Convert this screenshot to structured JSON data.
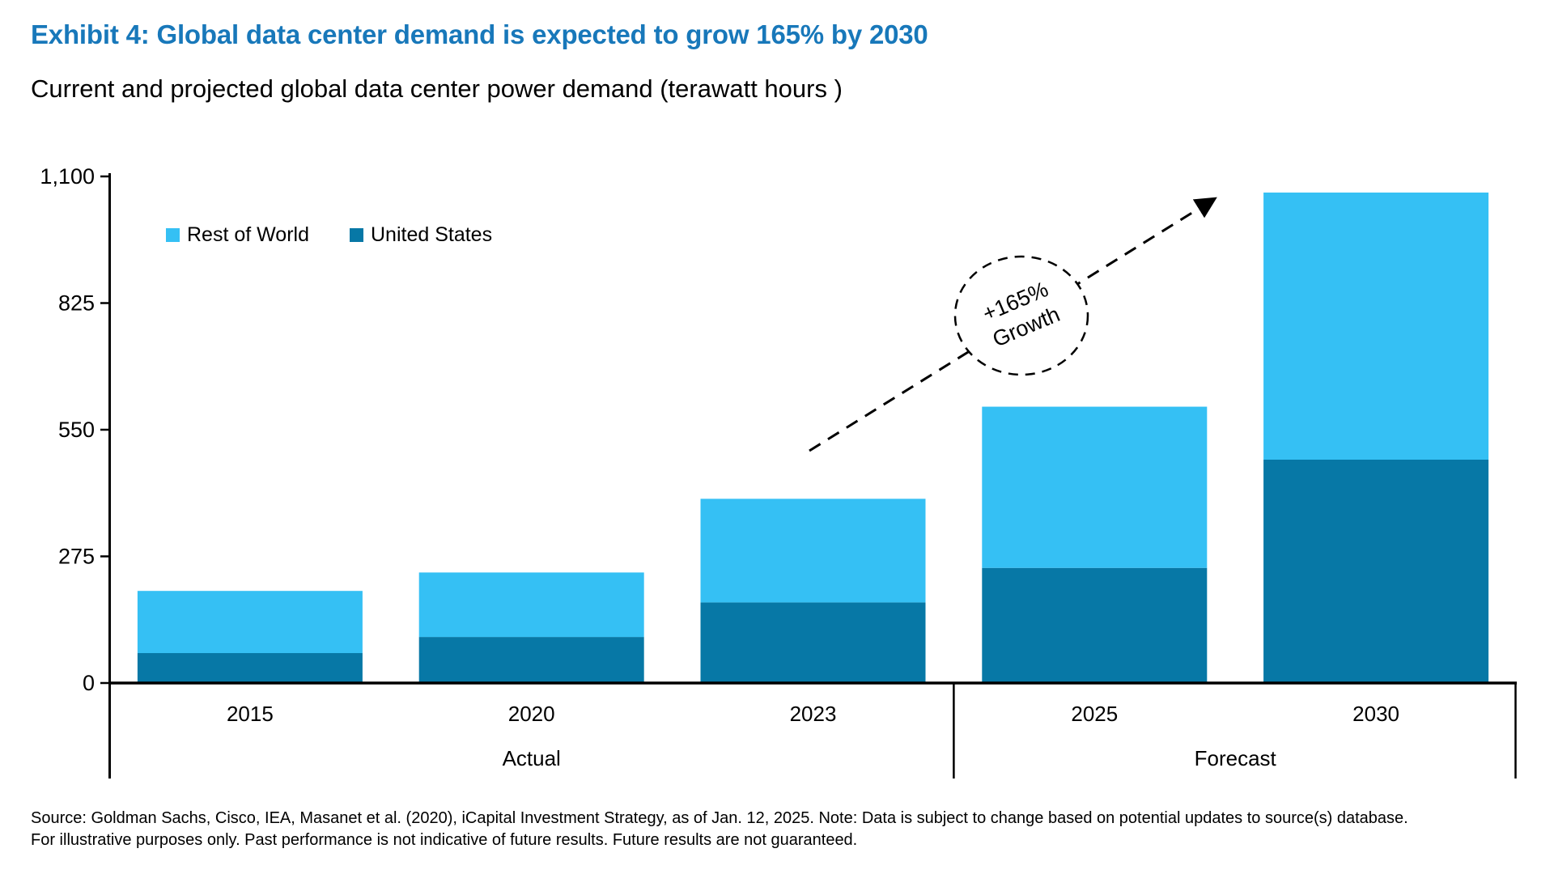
{
  "header": {
    "title": "Exhibit 4: Global data center demand is expected to grow 165% by 2030",
    "subtitle": "Current and projected global data center power demand (terawatt hours )"
  },
  "colors": {
    "title_accent": "#1878BA",
    "rest_of_world": "#35C0F4",
    "united_states": "#0778A6",
    "axis": "#000000"
  },
  "chart_data": {
    "type": "bar",
    "stacked": true,
    "unit": "terawatt hours",
    "title": "Current and projected global data center power demand (terawatt hours )",
    "categories": [
      "2015",
      "2020",
      "2023",
      "2025",
      "2030"
    ],
    "series": [
      {
        "name": "Rest of World",
        "color": "#35C0F4",
        "values": [
          135,
          140,
          225,
          350,
          580
        ]
      },
      {
        "name": "United States",
        "color": "#0778A6",
        "values": [
          65,
          100,
          175,
          250,
          485
        ]
      }
    ],
    "stack_order": [
      "United States",
      "Rest of World"
    ],
    "totals": [
      200,
      240,
      400,
      600,
      1065
    ],
    "y_axis": {
      "max": 1100,
      "ticks": [
        0,
        275,
        550,
        825,
        1100
      ],
      "tick_labels": [
        "0",
        "275",
        "550",
        "825",
        "1,100"
      ]
    },
    "groups": [
      {
        "label": "Actual",
        "categories": [
          "2015",
          "2020",
          "2023"
        ]
      },
      {
        "label": "Forecast",
        "categories": [
          "2025",
          "2030"
        ]
      }
    ],
    "grid": false,
    "legend_position": "top-left-inside",
    "annotation": {
      "line1": "+165%",
      "line2": "Growth",
      "meaning": "growth from 2023 to 2030"
    }
  },
  "footer": {
    "source_line1": "Source: Goldman Sachs, Cisco, IEA, Masanet et al. (2020), iCapital Investment Strategy, as of Jan. 12, 2025. Note: Data is subject to change based on potential updates to source(s) database.",
    "source_line2": "For illustrative purposes only. Past performance is not indicative of future results. Future results are not guaranteed."
  }
}
